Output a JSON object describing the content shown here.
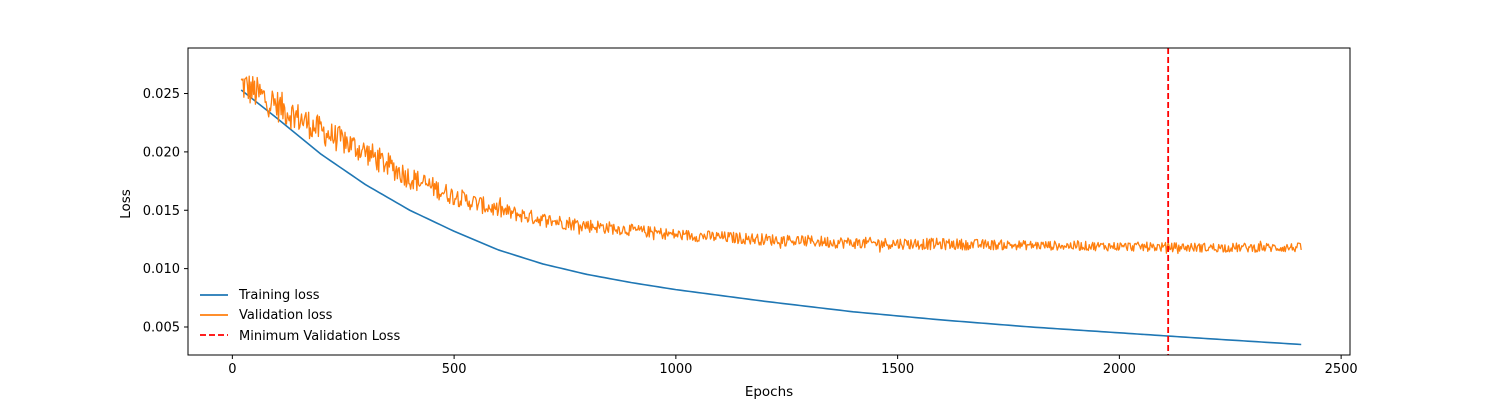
{
  "chart_data": {
    "type": "line",
    "title": "",
    "xlabel": "Epochs",
    "ylabel": "Loss",
    "xlim": [
      -100,
      2520
    ],
    "ylim": [
      0.0026,
      0.0289
    ],
    "xticks": [
      0,
      500,
      1000,
      1500,
      2000,
      2500
    ],
    "xtick_labels": [
      "0",
      "500",
      "1000",
      "1500",
      "2000",
      "2500"
    ],
    "yticks": [
      0.005,
      0.01,
      0.015,
      0.02,
      0.025
    ],
    "ytick_labels": [
      "0.005",
      "0.010",
      "0.015",
      "0.020",
      "0.025"
    ],
    "grid": false,
    "legend_position": "lower-left",
    "series": [
      {
        "name": "Training loss",
        "color": "#1f77b4",
        "style": "solid",
        "x": [
          20,
          100,
          200,
          300,
          400,
          500,
          600,
          700,
          800,
          900,
          1000,
          1200,
          1400,
          1600,
          1800,
          2000,
          2200,
          2410
        ],
        "y": [
          0.0253,
          0.0229,
          0.0198,
          0.0172,
          0.015,
          0.0132,
          0.0116,
          0.0104,
          0.0095,
          0.0088,
          0.0082,
          0.0072,
          0.0063,
          0.0056,
          0.005,
          0.0045,
          0.004,
          0.0035
        ]
      },
      {
        "name": "Validation loss",
        "color": "#ff7f0e",
        "style": "solid",
        "x": [
          20,
          100,
          200,
          300,
          400,
          500,
          600,
          700,
          800,
          900,
          1000,
          1200,
          1400,
          1600,
          1800,
          2000,
          2200,
          2410
        ],
        "y": [
          0.0258,
          0.024,
          0.0218,
          0.02,
          0.0178,
          0.0162,
          0.015,
          0.0142,
          0.0137,
          0.0133,
          0.0129,
          0.0125,
          0.0122,
          0.0121,
          0.012,
          0.0119,
          0.0118,
          0.0118
        ],
        "noise_amplitude": [
          0.0015,
          0.0014,
          0.0012,
          0.0011,
          0.001,
          0.0008,
          0.0007,
          0.0006,
          0.0006,
          0.0005,
          0.0005,
          0.0005,
          0.0005,
          0.0005,
          0.0004,
          0.0004,
          0.0004,
          0.0004
        ]
      }
    ],
    "vline": {
      "name": "Minimum Validation Loss",
      "x": 2110,
      "color": "#ff0000",
      "style": "dashed"
    }
  }
}
